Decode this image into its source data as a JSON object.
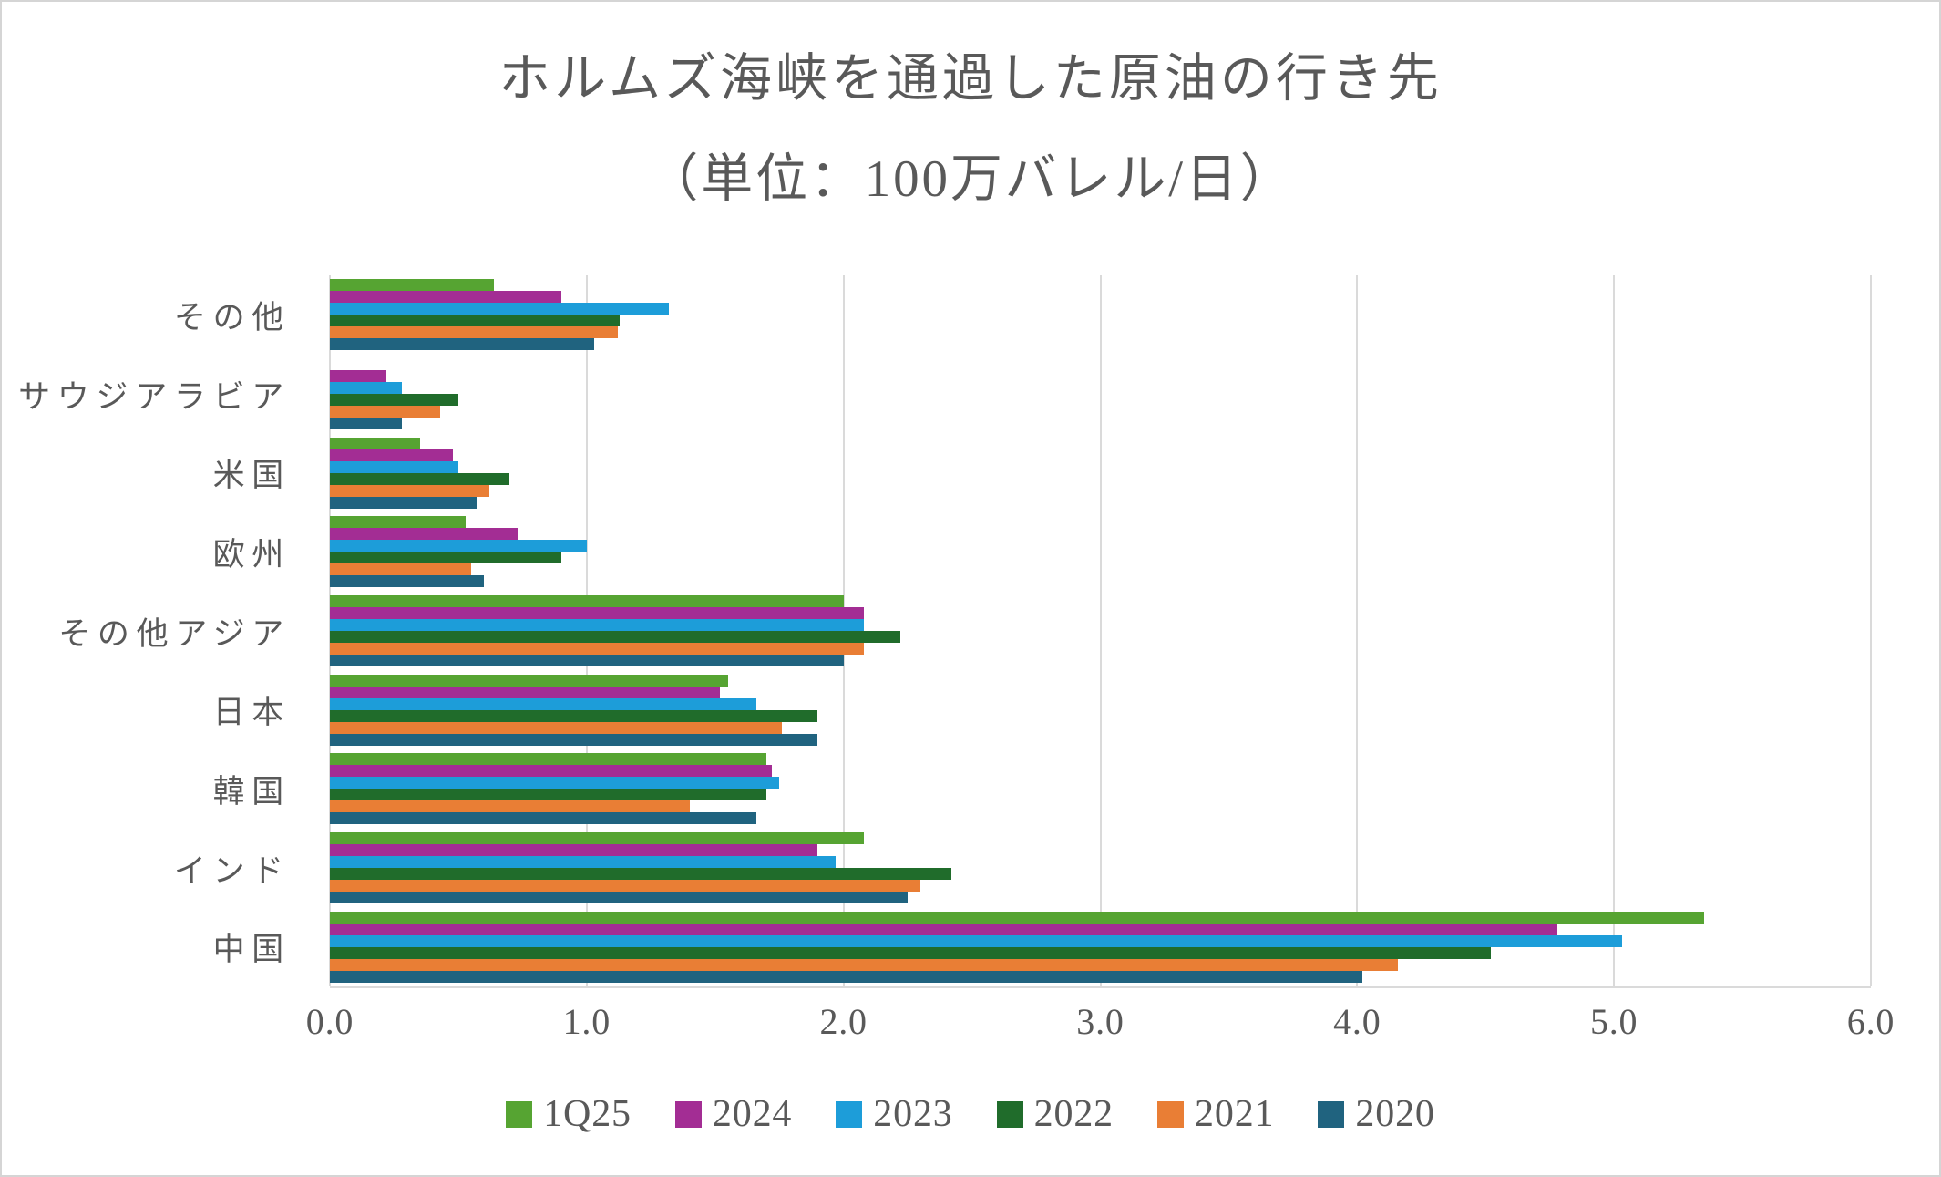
{
  "title": {
    "line1": "ホルムズ海峡を通過した原油の行き先",
    "line2": "（単位：100万バレル/日）"
  },
  "colors": {
    "text": "#595959",
    "gridline": "#dadada",
    "frame_border": "#d5d5d5",
    "background": "#ffffff"
  },
  "chart_data": {
    "type": "bar",
    "orientation": "horizontal",
    "title": "ホルムズ海峡を通過した原油の行き先",
    "subtitle": "（単位：100万バレル/日）",
    "unit": "100万バレル/日",
    "categories": [
      "その他",
      "サウジアラビア",
      "米国",
      "欧州",
      "その他アジア",
      "日本",
      "韓国",
      "インド",
      "中国"
    ],
    "series": [
      {
        "name": "1Q25",
        "color": "#56A432",
        "values": [
          0.64,
          0.0,
          0.35,
          0.53,
          2.0,
          1.55,
          1.7,
          2.08,
          5.35
        ]
      },
      {
        "name": "2024",
        "color": "#A32D94",
        "values": [
          0.9,
          0.22,
          0.48,
          0.73,
          2.08,
          1.52,
          1.72,
          1.9,
          4.78
        ]
      },
      {
        "name": "2023",
        "color": "#1D9DD9",
        "values": [
          1.32,
          0.28,
          0.5,
          1.0,
          2.08,
          1.66,
          1.75,
          1.97,
          5.03
        ]
      },
      {
        "name": "2022",
        "color": "#206C2B",
        "values": [
          1.13,
          0.5,
          0.7,
          0.9,
          2.22,
          1.9,
          1.7,
          2.42,
          4.52
        ]
      },
      {
        "name": "2021",
        "color": "#E97E35",
        "values": [
          1.12,
          0.43,
          0.62,
          0.55,
          2.08,
          1.76,
          1.4,
          2.3,
          4.16
        ]
      },
      {
        "name": "2020",
        "color": "#20637F",
        "values": [
          1.03,
          0.28,
          0.57,
          0.6,
          2.0,
          1.9,
          1.66,
          2.25,
          4.02
        ]
      }
    ],
    "xlim": [
      0,
      6
    ],
    "xticks": [
      "0.0",
      "1.0",
      "2.0",
      "3.0",
      "4.0",
      "5.0",
      "6.0"
    ],
    "grid": true,
    "legend_position": "bottom",
    "bar_order_within_group_top_to_bottom": [
      "1Q25",
      "2024",
      "2023",
      "2022",
      "2021",
      "2020"
    ],
    "category_order": "top to bottom as displayed"
  }
}
